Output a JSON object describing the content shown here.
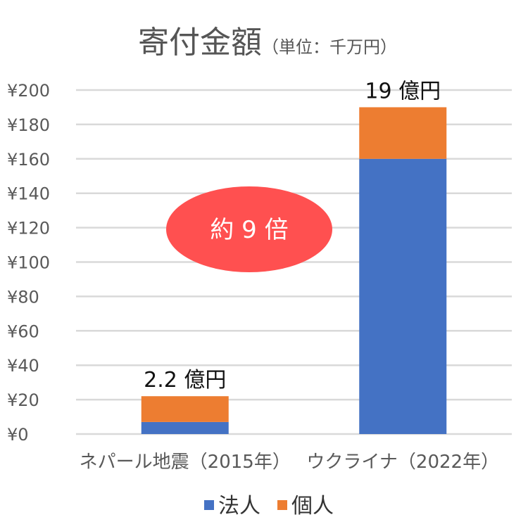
{
  "chart_data": {
    "type": "bar",
    "stacked": true,
    "title": "寄付金額",
    "title_unit": "（単位：千万円）",
    "categories": [
      "ネパール地震（2015年）",
      "ウクライナ（2022年）"
    ],
    "series": [
      {
        "name": "法人",
        "values": [
          7,
          160
        ],
        "color": "#4472C4"
      },
      {
        "name": "個人",
        "values": [
          15,
          30
        ],
        "color": "#ED7D31"
      }
    ],
    "totals_labels": [
      "2.2 億円",
      "19 億円"
    ],
    "yticks": [
      "¥0",
      "¥20",
      "¥40",
      "¥60",
      "¥80",
      "¥100",
      "¥120",
      "¥140",
      "¥160",
      "¥180",
      "¥200"
    ],
    "ylim": [
      0,
      200
    ],
    "ystep": 20,
    "grid": true,
    "legend_position": "bottom",
    "annotation": {
      "text": "約 9 倍",
      "color": "#FF5050"
    }
  }
}
